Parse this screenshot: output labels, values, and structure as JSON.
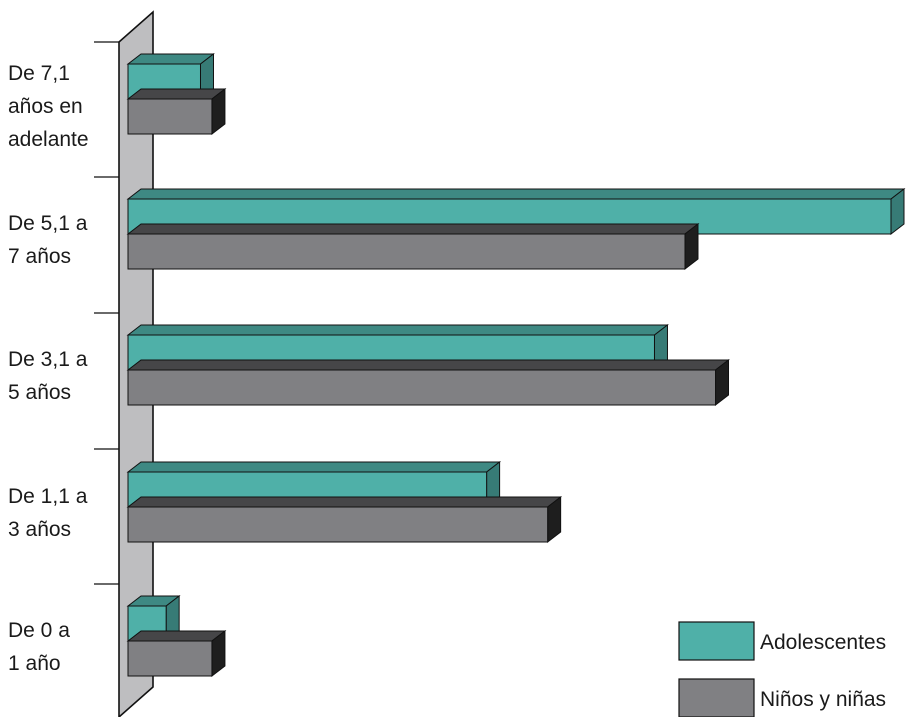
{
  "chart_data": {
    "type": "bar",
    "orientation": "horizontal",
    "three_d": true,
    "categories": [
      [
        "De 7,1",
        "años en",
        "adelante"
      ],
      [
        "De 5,1 a",
        "7 años"
      ],
      [
        "De 3,1 a",
        "5 años"
      ],
      [
        "De 1,1 a",
        "3 años"
      ],
      [
        "De 0 a",
        "1 año"
      ]
    ],
    "series": [
      {
        "name": "Adolescentes",
        "color": "#4fb0a8",
        "values": [
          9.5,
          100,
          69,
          47,
          5
        ]
      },
      {
        "name": "Niños y niñas",
        "color": "#808083",
        "values": [
          11,
          73,
          77,
          55,
          11
        ]
      }
    ],
    "xlim": [
      0,
      100
    ],
    "x_axis_visible": false,
    "grid": false,
    "title": "",
    "xlabel": "",
    "ylabel": "",
    "legend": {
      "position": "bottom-right"
    }
  }
}
